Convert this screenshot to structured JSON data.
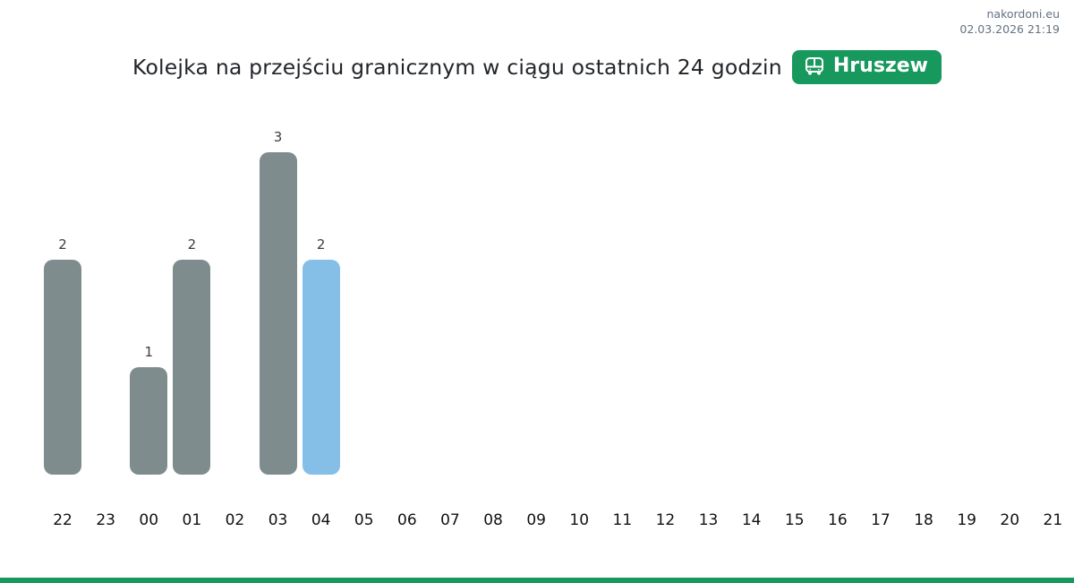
{
  "watermark": {
    "site": "nakordoni.eu",
    "timestamp": "02.03.2026 21:19"
  },
  "header": {
    "title": "Kolejka na przejściu granicznym w ciągu ostatnich 24 godzin",
    "badge": {
      "label": "Hruszew",
      "icon": "bus-icon",
      "color": "#17985c",
      "text_color": "#ffffff"
    }
  },
  "chart_data": {
    "type": "bar",
    "title": "Kolejka na przejściu granicznym w ciągu ostatnich 24 godzin",
    "categories": [
      "22",
      "23",
      "00",
      "01",
      "02",
      "03",
      "04",
      "05",
      "06",
      "07",
      "08",
      "09",
      "10",
      "11",
      "12",
      "13",
      "14",
      "15",
      "16",
      "17",
      "18",
      "19",
      "20",
      "21"
    ],
    "values": [
      2,
      0,
      1,
      2,
      0,
      3,
      2,
      0,
      0,
      0,
      0,
      0,
      0,
      0,
      0,
      0,
      0,
      0,
      0,
      0,
      0,
      0,
      0,
      0
    ],
    "highlight_index": 6,
    "xlabel": "",
    "ylabel": "",
    "ylim": [
      0,
      3.3
    ],
    "grid": false,
    "legend": "none",
    "value_labels_shown_for_nonzero_bars": true,
    "colors": {
      "bar": "#7f8c8d",
      "highlight_bar": "#85bfe8",
      "value_label": "#3d3d3d",
      "axis_label": "#111111"
    }
  },
  "footer": {
    "accent_color": "#17985c"
  }
}
